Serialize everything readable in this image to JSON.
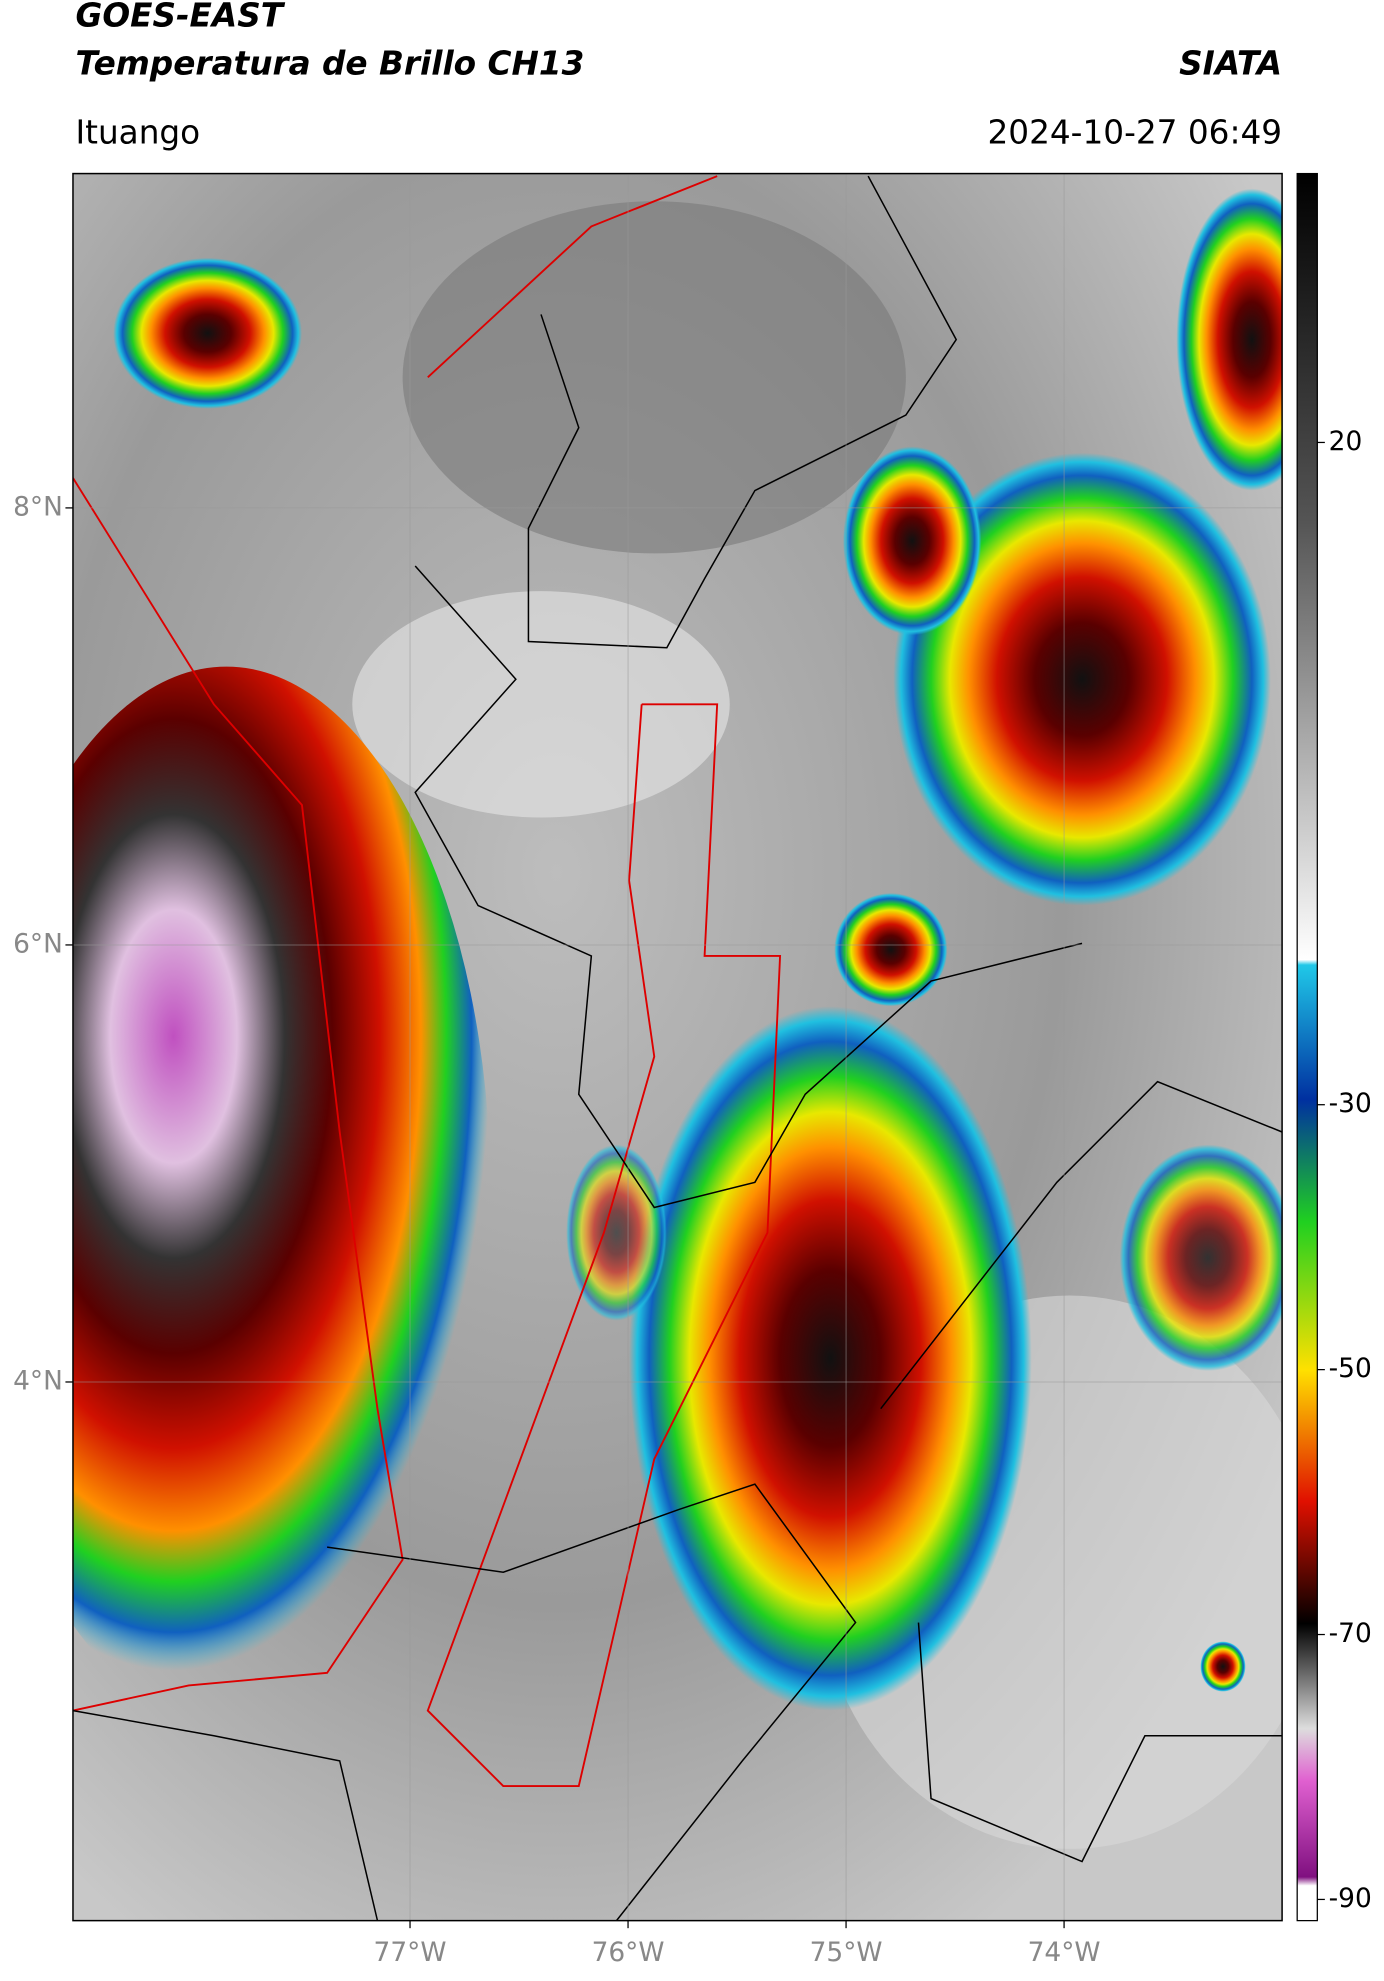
{
  "header": {
    "title": "GOES-EAST",
    "subtitle": "Temperatura de Brillo CH13",
    "source": "SIATA",
    "location": "Ituango",
    "datetime": "2024-10-27 06:49"
  },
  "map": {
    "xlim": [
      -78.546,
      -73.0
    ],
    "ylim": [
      1.535,
      9.53
    ],
    "xticks": [
      {
        "value": -77,
        "label": "77°W"
      },
      {
        "value": -76,
        "label": "76°W"
      },
      {
        "value": -75,
        "label": "75°W"
      },
      {
        "value": -74,
        "label": "74°W"
      }
    ],
    "yticks": [
      {
        "value": 8,
        "label": "8°N"
      },
      {
        "value": 6,
        "label": "6°N"
      },
      {
        "value": 4,
        "label": "4°N"
      }
    ],
    "grid": true
  },
  "colorbar": {
    "lim": [
      -91.6,
      40.3
    ],
    "ticks": [
      20,
      -30,
      -50,
      -70,
      -90
    ]
  }
}
